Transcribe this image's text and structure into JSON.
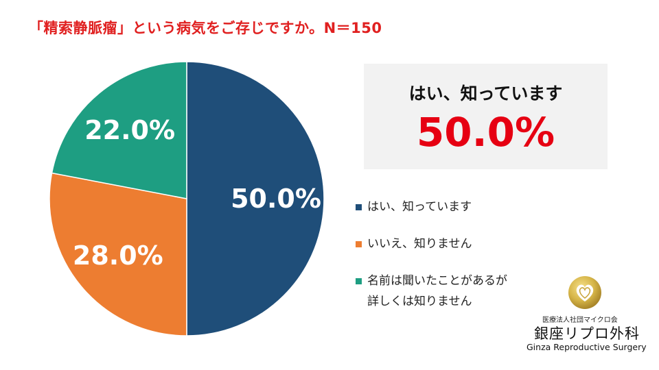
{
  "title": "「精索静脈瘤」という病気をご存じですか。N＝150",
  "callout": {
    "label": "はい、知っています",
    "value": "50.0%"
  },
  "chart_data": {
    "type": "pie",
    "title": "「精索静脈瘤」という病気をご存じですか。N＝150",
    "categories": [
      "はい、知っています",
      "いいえ、知りません",
      "名前は聞いたことがあるが詳しくは知りません"
    ],
    "values": [
      50.0,
      28.0,
      22.0
    ],
    "data_labels": [
      "50.0%",
      "28.0%",
      "22.0%"
    ],
    "colors": [
      "#1f4e79",
      "#ed7d31",
      "#1e9e82"
    ],
    "legend_position": "right"
  },
  "legend": {
    "items": [
      {
        "lines": [
          "はい、知っています"
        ]
      },
      {
        "lines": [
          "いいえ、知りません"
        ]
      },
      {
        "lines": [
          "名前は聞いたことがあるが",
          "詳しくは知りません"
        ]
      }
    ]
  },
  "logo": {
    "corp": "医療法人社団マイクロ会",
    "name": "銀座リプロ外科",
    "en": "Ginza Reproductive Surgery",
    "icon": "heart-emblem-icon"
  }
}
